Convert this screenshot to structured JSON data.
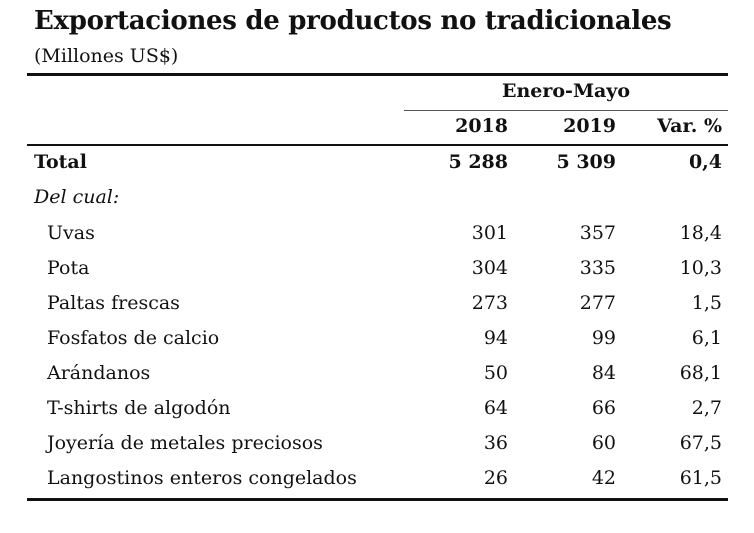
{
  "title": "Exportaciones de productos no tradicionales",
  "subtitle": "(Millones US$)",
  "header": {
    "group": "Enero-Mayo",
    "col_2018": "2018",
    "col_2019": "2019",
    "col_var": "Var. %"
  },
  "total": {
    "label": "Total",
    "y2018": "5 288",
    "y2019": "5 309",
    "var": "0,4"
  },
  "of_which": "Del cual:",
  "rows": [
    {
      "label": "Uvas",
      "y2018": "301",
      "y2019": "357",
      "var": "18,4"
    },
    {
      "label": "Pota",
      "y2018": "304",
      "y2019": "335",
      "var": "10,3"
    },
    {
      "label": "Paltas frescas",
      "y2018": "273",
      "y2019": "277",
      "var": "1,5"
    },
    {
      "label": "Fosfatos de calcio",
      "y2018": "94",
      "y2019": "99",
      "var": "6,1"
    },
    {
      "label": "Arándanos",
      "y2018": "50",
      "y2019": "84",
      "var": "68,1"
    },
    {
      "label": "T-shirts de algodón",
      "y2018": "64",
      "y2019": "66",
      "var": "2,7"
    },
    {
      "label": "Joyería de metales preciosos",
      "y2018": "36",
      "y2019": "60",
      "var": "67,5"
    },
    {
      "label": "Langostinos enteros congelados",
      "y2018": "26",
      "y2019": "42",
      "var": "61,5"
    }
  ]
}
